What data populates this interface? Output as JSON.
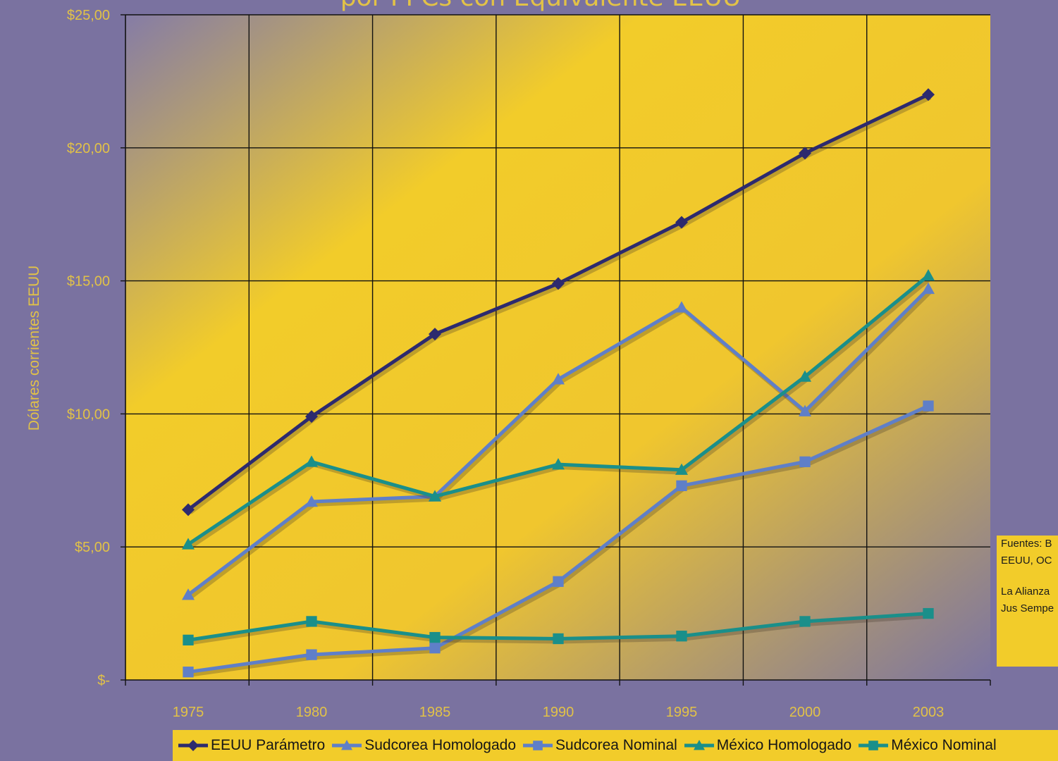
{
  "colors": {
    "page_background": "#7a72a0",
    "plot_yellow": "#f5cd24",
    "plot_purple": "#8a82aa",
    "axis_text": "#e2c247",
    "legend_background": "#f2cc2a"
  },
  "chart_data": {
    "type": "line",
    "title": "por PPCs con Equivalente EEUU",
    "xlabel": "",
    "ylabel": "Dólares corrientes EEUU",
    "categories": [
      "1975",
      "1980",
      "1985",
      "1990",
      "1995",
      "2000",
      "2003"
    ],
    "y_tick_labels": [
      "$-",
      "$5,00",
      "$10,00",
      "$15,00",
      "$20,00",
      "$25,00"
    ],
    "ylim": [
      0,
      25
    ],
    "grid": true,
    "legend_position": "bottom",
    "series": [
      {
        "name": "EEUU Parámetro",
        "color": "#2d2a6e",
        "marker": "diamond",
        "values": [
          6.4,
          9.9,
          13.0,
          14.9,
          17.2,
          19.8,
          22.0
        ]
      },
      {
        "name": "Sudcorea Homologado",
        "color": "#5f7fc8",
        "marker": "triangle",
        "values": [
          3.2,
          6.7,
          6.9,
          11.3,
          14.0,
          10.1,
          14.7
        ]
      },
      {
        "name": "Sudcorea Nominal",
        "color": "#5f7fc8",
        "marker": "square",
        "values": [
          0.3,
          0.95,
          1.2,
          3.7,
          7.3,
          8.2,
          10.3
        ]
      },
      {
        "name": "México Homologado",
        "color": "#1a8f8a",
        "marker": "triangle",
        "values": [
          5.1,
          8.2,
          6.9,
          8.1,
          7.9,
          11.4,
          15.2
        ]
      },
      {
        "name": "México Nominal",
        "color": "#1a8f8a",
        "marker": "square",
        "values": [
          1.5,
          2.2,
          1.6,
          1.55,
          1.65,
          2.2,
          2.5
        ]
      }
    ]
  },
  "source_note": {
    "line1": "Fuentes: B",
    "line2": "EEUU, OC",
    "line3": "La Alianza",
    "line4": "Jus Sempe"
  }
}
